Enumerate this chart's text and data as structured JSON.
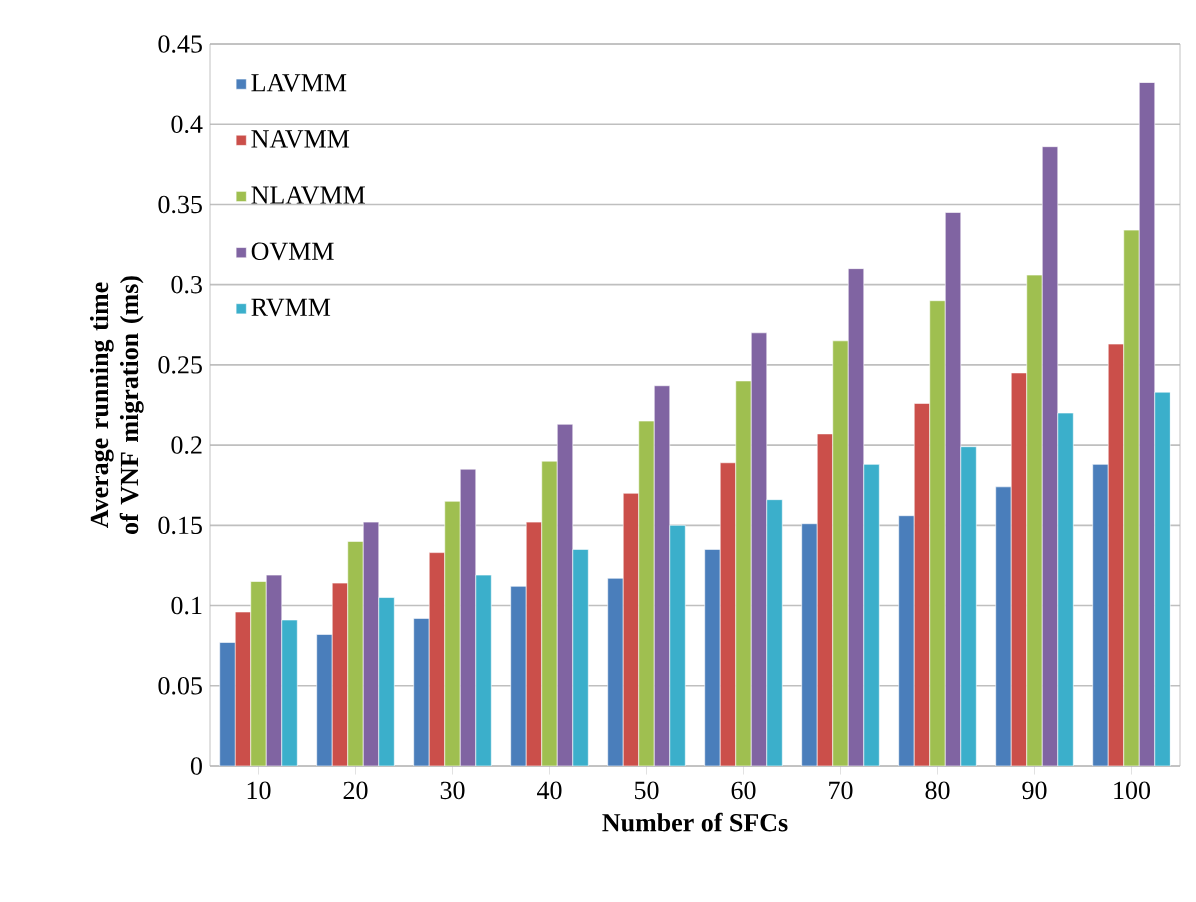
{
  "chart_data": {
    "type": "bar",
    "xlabel": "Number of SFCs",
    "ylabel": "Average running time of VNF migration (ms)",
    "categories": [
      "10",
      "20",
      "30",
      "40",
      "50",
      "60",
      "70",
      "80",
      "90",
      "100"
    ],
    "series": [
      {
        "name": "LAVMM",
        "color": "#4a7ebb",
        "values": [
          0.077,
          0.082,
          0.092,
          0.112,
          0.117,
          0.135,
          0.151,
          0.156,
          0.174,
          0.188
        ]
      },
      {
        "name": "NAVMM",
        "color": "#cb4f4a",
        "values": [
          0.096,
          0.114,
          0.133,
          0.152,
          0.17,
          0.189,
          0.207,
          0.226,
          0.245,
          0.263
        ]
      },
      {
        "name": "NLAVMM",
        "color": "#9fbf50",
        "values": [
          0.115,
          0.14,
          0.165,
          0.19,
          0.215,
          0.24,
          0.265,
          0.29,
          0.306,
          0.334
        ]
      },
      {
        "name": "OVMM",
        "color": "#8064a2",
        "values": [
          0.119,
          0.152,
          0.185,
          0.213,
          0.237,
          0.27,
          0.31,
          0.345,
          0.386,
          0.426
        ]
      },
      {
        "name": "RVMM",
        "color": "#3bafcb",
        "values": [
          0.091,
          0.105,
          0.119,
          0.135,
          0.15,
          0.166,
          0.188,
          0.199,
          0.22,
          0.233
        ]
      }
    ],
    "ylim": [
      0,
      0.45
    ],
    "yticks": [
      0,
      0.05,
      0.1,
      0.15,
      0.2,
      0.25,
      0.3,
      0.35,
      0.4,
      0.45
    ],
    "grid": "y",
    "legend": "top left"
  }
}
